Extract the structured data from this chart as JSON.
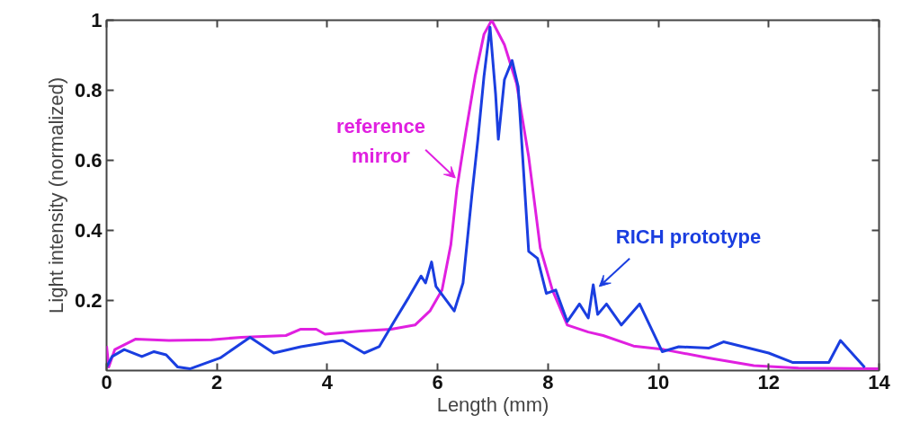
{
  "chart_data": {
    "type": "line",
    "xlabel": "Length (mm)",
    "ylabel": "Light intensity (normalized)",
    "xlim": [
      0,
      14
    ],
    "ylim": [
      0,
      1
    ],
    "xticks": [
      0,
      2,
      4,
      6,
      8,
      10,
      12,
      14
    ],
    "yticks": [
      0.2,
      0.4,
      0.6,
      0.8,
      1
    ],
    "grid": false,
    "line_style": "solid",
    "marker": "none",
    "series": [
      {
        "color": "#e020e0",
        "x": [
          0,
          0.04,
          0.15,
          0.53,
          1.13,
          1.9,
          2.44,
          3.25,
          3.52,
          3.8,
          3.96,
          4.61,
          5.16,
          5.59,
          5.86,
          6.08,
          6.24,
          6.35,
          6.51,
          6.68,
          6.84,
          6.98,
          7.21,
          7.43,
          7.65,
          7.86,
          8.08,
          8.35,
          8.73,
          9.0,
          9.55,
          10.1,
          10.91,
          11.73,
          12.54,
          14
        ],
        "values": [
          0.07,
          0.01,
          0.06,
          0.09,
          0.086,
          0.088,
          0.095,
          0.1,
          0.118,
          0.118,
          0.104,
          0.113,
          0.118,
          0.13,
          0.17,
          0.23,
          0.36,
          0.52,
          0.68,
          0.84,
          0.96,
          1.0,
          0.93,
          0.82,
          0.61,
          0.35,
          0.23,
          0.13,
          0.11,
          0.1,
          0.07,
          0.06,
          0.036,
          0.014,
          0.007,
          0.005
        ]
      },
      {
        "color": "#1a3ee0",
        "x": [
          0,
          0.1,
          0.32,
          0.64,
          0.86,
          1.08,
          1.29,
          1.51,
          2.06,
          2.6,
          3.03,
          3.52,
          4.07,
          4.28,
          4.67,
          4.94,
          5.21,
          5.48,
          5.7,
          5.78,
          5.89,
          5.97,
          6.3,
          6.46,
          6.62,
          6.73,
          6.84,
          6.95,
          7.05,
          7.1,
          7.21,
          7.35,
          7.46,
          7.65,
          7.81,
          7.97,
          8.14,
          8.35,
          8.57,
          8.73,
          8.82,
          8.9,
          9.06,
          9.33,
          9.66,
          10.07,
          10.37,
          10.91,
          11.18,
          12.0,
          12.44,
          13.09,
          13.3,
          13.74
        ],
        "values": [
          0.01,
          0.04,
          0.06,
          0.04,
          0.054,
          0.045,
          0.01,
          0.005,
          0.036,
          0.095,
          0.05,
          0.068,
          0.082,
          0.086,
          0.05,
          0.068,
          0.14,
          0.21,
          0.27,
          0.25,
          0.31,
          0.24,
          0.17,
          0.25,
          0.5,
          0.66,
          0.84,
          0.98,
          0.79,
          0.66,
          0.83,
          0.885,
          0.81,
          0.34,
          0.32,
          0.22,
          0.23,
          0.14,
          0.19,
          0.15,
          0.245,
          0.16,
          0.19,
          0.13,
          0.19,
          0.054,
          0.068,
          0.064,
          0.082,
          0.05,
          0.023,
          0.023,
          0.086,
          0.009
        ]
      }
    ],
    "annotations": [
      {
        "text": "reference\nmirror",
        "x": 6.32,
        "y": 0.55
      },
      {
        "text": "RICH prototype",
        "x": 8.93,
        "y": 0.24
      }
    ]
  }
}
